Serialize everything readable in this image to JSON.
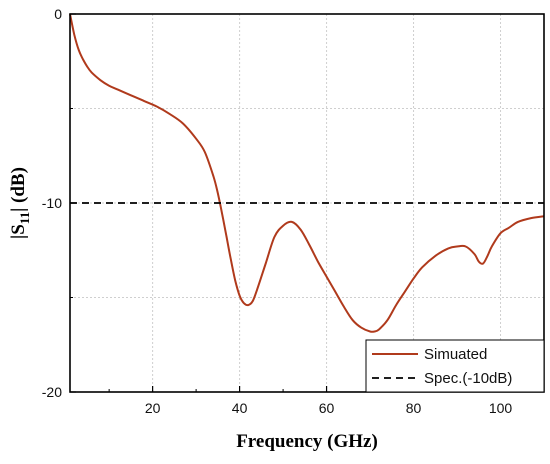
{
  "chart_data": {
    "type": "line",
    "xlabel": "Frequency (GHz)",
    "ylabel_main": "|S",
    "ylabel_sub": "11",
    "ylabel_rest": "| (dB)",
    "xlim": [
      1,
      110
    ],
    "ylim": [
      -20,
      0
    ],
    "xticks": [
      20,
      40,
      60,
      80,
      100
    ],
    "yticks": [
      0,
      -10,
      -20
    ],
    "grid": true,
    "legend_position": "bottom-right",
    "series": [
      {
        "name": "Simuated",
        "color": "#b03a1c",
        "style": "solid",
        "x": [
          1,
          2,
          3,
          4,
          5,
          6,
          8,
          10,
          12,
          15,
          18,
          21,
          24,
          27,
          30,
          32,
          34,
          35,
          36,
          37,
          38,
          39,
          40,
          41,
          42,
          43,
          44,
          46,
          48,
          50,
          52,
          54,
          56,
          58,
          60,
          62,
          64,
          66,
          68,
          70,
          71,
          72,
          74,
          76,
          78,
          80,
          82,
          85,
          88,
          90,
          92,
          94,
          95,
          96,
          97,
          98,
          100,
          102,
          104,
          107,
          110
        ],
        "y": [
          0,
          -1.1,
          -1.9,
          -2.4,
          -2.8,
          -3.1,
          -3.5,
          -3.8,
          -4.0,
          -4.3,
          -4.6,
          -4.9,
          -5.3,
          -5.8,
          -6.6,
          -7.3,
          -8.6,
          -9.5,
          -10.6,
          -11.8,
          -13.0,
          -14.1,
          -14.9,
          -15.3,
          -15.4,
          -15.2,
          -14.6,
          -13.2,
          -11.8,
          -11.2,
          -11.0,
          -11.4,
          -12.2,
          -13.1,
          -13.9,
          -14.7,
          -15.5,
          -16.2,
          -16.6,
          -16.8,
          -16.8,
          -16.7,
          -16.2,
          -15.4,
          -14.7,
          -14.0,
          -13.4,
          -12.8,
          -12.4,
          -12.3,
          -12.3,
          -12.7,
          -13.1,
          -13.2,
          -12.8,
          -12.3,
          -11.6,
          -11.3,
          -11.0,
          -10.8,
          -10.7
        ]
      },
      {
        "name": "Spec.(-10dB)",
        "color": "#000000",
        "style": "dashed",
        "x": [
          1,
          110
        ],
        "y": [
          -10,
          -10
        ]
      }
    ]
  }
}
